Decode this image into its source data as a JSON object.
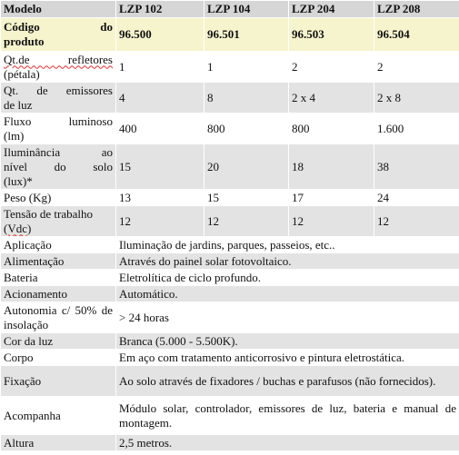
{
  "header": {
    "col0": "Modelo",
    "models": [
      "LZP 102",
      "LZP 104",
      "LZP 204",
      "LZP 208"
    ]
  },
  "codigo": {
    "label_line1": "Código do",
    "label_line2": "produto",
    "values": [
      "96.500",
      "96.501",
      "96.503",
      "96.504"
    ]
  },
  "specs": [
    {
      "label1": "Qt.de refletores",
      "label2": "(pétala)",
      "values": [
        "1",
        "1",
        "2",
        "2"
      ]
    },
    {
      "label1": "Qt. de emissores",
      "label2": "de luz",
      "values": [
        "4",
        "8",
        "2 x 4",
        "2 x 8"
      ]
    },
    {
      "label1": "Fluxo luminoso",
      "label2": "(lm)",
      "values": [
        "400",
        "800",
        "800",
        "1.600"
      ]
    },
    {
      "label1": "Iluminância ao",
      "label2": "nível do solo",
      "label3": "(lux)*",
      "values": [
        "15",
        "20",
        "18",
        "38"
      ]
    },
    {
      "label1": "Peso (Kg)",
      "values": [
        "13",
        "15",
        "17",
        "24"
      ]
    },
    {
      "label1": "Tensão de trabalho",
      "label2": "(Vdc)",
      "values": [
        "12",
        "12",
        "12",
        "12"
      ]
    }
  ],
  "info": [
    {
      "label": "Aplicação",
      "value": "Iluminação de jardins, parques, passeios, etc.."
    },
    {
      "label": "Alimentação",
      "value": "Através do painel solar fotovoltaico."
    },
    {
      "label": "Bateria",
      "value": "Eletrolítica de ciclo profundo."
    },
    {
      "label": "Acionamento",
      "value": "Automático."
    },
    {
      "label": "Autonomia c/ 50% de insolação",
      "value": "> 24 horas"
    },
    {
      "label": "Cor da luz",
      "value": "Branca (5.000 - 5.500K)."
    },
    {
      "label": "Corpo",
      "value": "Em aço com tratamento anticorrosivo e pintura eletrostática."
    },
    {
      "label": "Fixação",
      "value": "Ao solo através de fixadores / buchas e parafusos (não fornecidos)."
    },
    {
      "label": "Acompanha",
      "value": "Módulo solar, controlador, emissores de luz, bateria e manual de montagem."
    },
    {
      "label": "Altura",
      "value": "2,5 metros."
    }
  ],
  "colors": {
    "header_bg": "#d6d6d6",
    "codigo_bg": "#f6f4cc",
    "row_gray": "#e3e3e3",
    "row_white": "#ffffff"
  }
}
